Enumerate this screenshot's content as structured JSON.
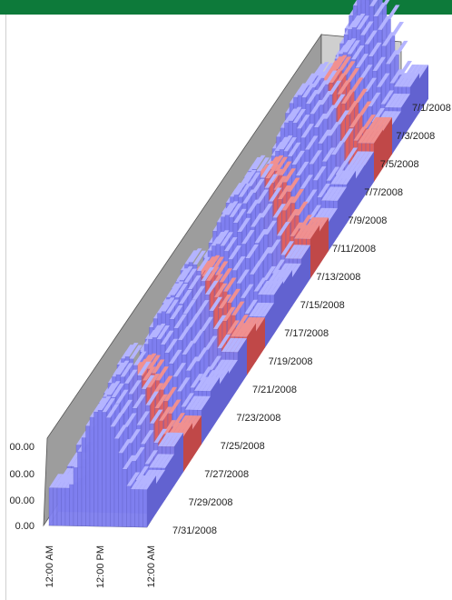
{
  "chart_data": {
    "type": "3d-column",
    "title": "",
    "xlabel": "",
    "ylabel": "",
    "y_tick_labels": [
      "0.00",
      "00.00",
      "00.00",
      "00.00"
    ],
    "x_tick_labels": [
      "12:00 AM",
      "12:00 PM",
      "12:00 AM"
    ],
    "date_labels": [
      "7/1/2008",
      "7/3/2008",
      "7/5/2008",
      "7/7/2008",
      "7/9/2008",
      "7/11/2008",
      "7/13/2008",
      "7/15/2008",
      "7/17/2008",
      "7/19/2008",
      "7/21/2008",
      "7/23/2008",
      "7/25/2008",
      "7/27/2008",
      "7/29/2008",
      "7/31/2008"
    ],
    "highlighted_date_ranges": [
      [
        "7/5/2008",
        "7/6/2008"
      ],
      [
        "7/12/2008",
        "7/13/2008"
      ],
      [
        "7/19/2008",
        "7/20/2008"
      ],
      [
        "7/26/2008",
        "7/27/2008"
      ]
    ],
    "colors": {
      "normal": "#7f7ff0",
      "highlight": "#e06060",
      "side_wall": "#9a9a9a",
      "header_bar": "#0d7a3a"
    }
  }
}
